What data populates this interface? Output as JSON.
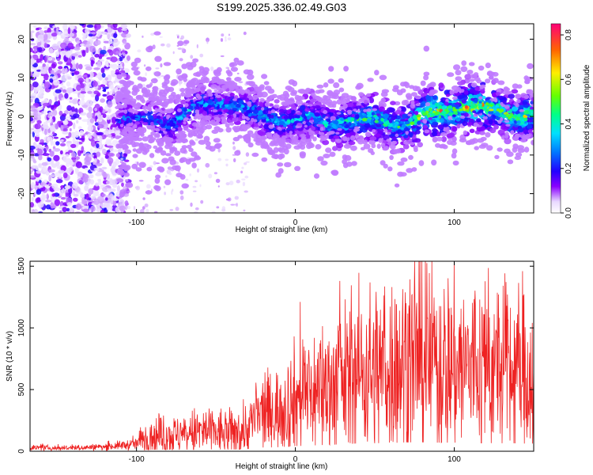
{
  "title": "S199.2025.336.02.49.G03",
  "chart_data": [
    {
      "type": "heatmap",
      "xlabel": "Height of straight line (km)",
      "ylabel": "Frequency (Hz)",
      "xlim": [
        -167,
        150
      ],
      "ylim": [
        -25,
        24
      ],
      "xticks": [
        -100,
        0,
        100
      ],
      "xtick_labels": [
        "-100",
        "0",
        "100"
      ],
      "yticks": [
        -20,
        -10,
        0,
        10,
        20
      ],
      "ytick_labels": [
        "-20",
        "-10",
        "0",
        "10",
        "20"
      ],
      "colorbar": {
        "label": "Normalized spectral amplitude",
        "range": [
          0.0,
          0.85
        ],
        "ticks": [
          0.0,
          0.2,
          0.4,
          0.6,
          0.8
        ],
        "tick_labels": [
          "0.0",
          "0.2",
          "0.4",
          "0.6",
          "0.8"
        ]
      },
      "ridge": {
        "x": [
          -100,
          -90,
          -80,
          -70,
          -60,
          -50,
          -40,
          -30,
          -20,
          -10,
          0,
          10,
          20,
          30,
          40,
          50,
          60,
          70,
          80,
          90,
          100,
          110,
          120,
          130,
          140,
          150
        ],
        "freq": [
          -1,
          0,
          -2,
          0,
          3,
          4,
          3,
          1,
          0,
          -1,
          -1,
          0,
          -2,
          -1,
          -1,
          -1,
          -2,
          -2,
          0,
          1,
          2,
          3,
          2,
          1,
          0,
          1
        ],
        "peak_amplitude": [
          0.25,
          0.28,
          0.3,
          0.32,
          0.3,
          0.3,
          0.3,
          0.33,
          0.35,
          0.35,
          0.33,
          0.35,
          0.38,
          0.4,
          0.42,
          0.48,
          0.45,
          0.42,
          0.55,
          0.65,
          0.55,
          0.7,
          0.6,
          0.5,
          0.55,
          0.5
        ]
      }
    },
    {
      "type": "line",
      "xlabel": "Height of straight line (km)",
      "ylabel": "SNR (10 * v/v)",
      "xlim": [
        -167,
        150
      ],
      "ylim": [
        0,
        1540
      ],
      "xticks": [
        -100,
        0,
        100
      ],
      "xtick_labels": [
        "-100",
        "0",
        "100"
      ],
      "yticks": [
        0,
        500,
        1000,
        1500
      ],
      "ytick_labels": [
        "0",
        "500",
        "1000",
        "1500"
      ],
      "series": [
        {
          "name": "SNR",
          "color": "#ee2222",
          "x": [
            -167,
            -150,
            -120,
            -100,
            -95,
            -90,
            -80,
            -70,
            -60,
            -50,
            -40,
            -30,
            -25,
            -20,
            -10,
            0,
            10,
            20,
            30,
            40,
            50,
            60,
            70,
            80,
            90,
            100,
            110,
            120,
            130,
            140,
            150
          ],
          "values": [
            30,
            25,
            35,
            60,
            110,
            120,
            130,
            120,
            160,
            150,
            140,
            180,
            280,
            300,
            330,
            420,
            470,
            520,
            560,
            640,
            650,
            680,
            720,
            720,
            700,
            700,
            680,
            660,
            650,
            640,
            620
          ],
          "peaks": [
            {
              "x": 3,
              "value": 1210
            },
            {
              "x": 28,
              "value": 1380
            },
            {
              "x": 75,
              "value": 1540
            },
            {
              "x": 143,
              "value": 1460
            }
          ]
        }
      ]
    }
  ]
}
